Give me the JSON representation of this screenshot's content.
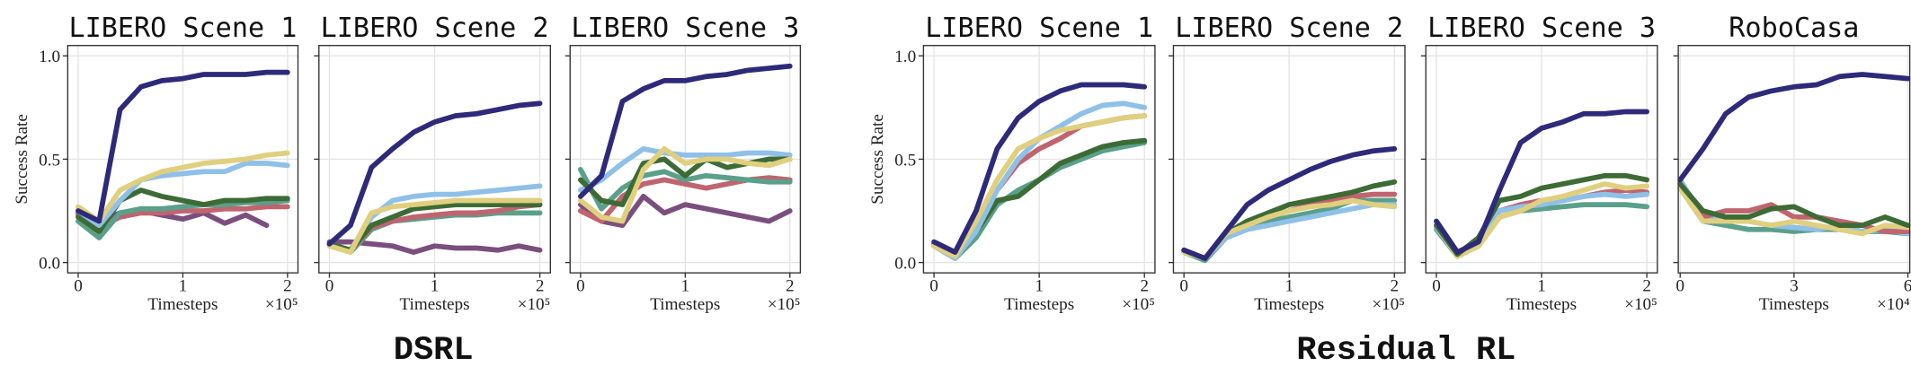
{
  "chart_data": [
    {
      "type": "line",
      "title": "LIBERO Scene 1",
      "ylabel": "Success Rate",
      "xlabel": "Timesteps",
      "x_offset": "×10⁵",
      "grid": true,
      "ytick_labels": true,
      "x": [
        0,
        0.2,
        0.4,
        0.6,
        0.8,
        1.0,
        1.2,
        1.4,
        1.6,
        1.8,
        2.0
      ],
      "xlim": [
        -0.1,
        2.1
      ],
      "xticks": [
        0,
        1,
        2
      ],
      "ylim": [
        -0.05,
        1.05
      ],
      "yticks": [
        {
          "value": 0,
          "label": "0.0"
        },
        {
          "value": 0.5,
          "label": "0.5"
        },
        {
          "value": 1,
          "label": "1.0"
        }
      ],
      "series": [
        {
          "color": "#7a4f7e",
          "values": [
            0.24,
            0.2,
            0.24,
            0.25,
            0.23,
            0.21,
            0.24,
            0.19,
            0.23,
            0.18,
            null
          ]
        },
        {
          "color": "#c0646f",
          "values": [
            0.23,
            0.17,
            0.22,
            0.24,
            0.24,
            0.25,
            0.25,
            0.26,
            0.26,
            0.27,
            0.27
          ]
        },
        {
          "color": "#5aa08a",
          "values": [
            0.2,
            0.12,
            0.24,
            0.26,
            0.26,
            0.27,
            0.28,
            0.28,
            0.29,
            0.29,
            0.3
          ]
        },
        {
          "color": "#3d6b35",
          "values": [
            0.22,
            0.15,
            0.3,
            0.35,
            0.32,
            0.3,
            0.28,
            0.3,
            0.3,
            0.31,
            0.31
          ]
        },
        {
          "color": "#8fc0e8",
          "values": [
            0.25,
            0.18,
            0.3,
            0.4,
            0.42,
            0.43,
            0.44,
            0.44,
            0.48,
            0.48,
            0.47
          ]
        },
        {
          "color": "#e0cf7e",
          "values": [
            0.27,
            0.2,
            0.35,
            0.4,
            0.44,
            0.46,
            0.48,
            0.49,
            0.5,
            0.52,
            0.53
          ]
        },
        {
          "color": "#2e2a7a",
          "values": [
            0.25,
            0.2,
            0.74,
            0.85,
            0.88,
            0.89,
            0.91,
            0.91,
            0.91,
            0.92,
            0.92
          ]
        }
      ]
    },
    {
      "type": "line",
      "title": "LIBERO Scene 2",
      "xlabel": "Timesteps",
      "x_offset": "×10⁵",
      "grid": true,
      "ytick_labels": false,
      "x": [
        0,
        0.2,
        0.4,
        0.6,
        0.8,
        1.0,
        1.2,
        1.4,
        1.6,
        1.8,
        2.0
      ],
      "xlim": [
        -0.1,
        2.1
      ],
      "xticks": [
        0,
        1,
        2
      ],
      "ylim": [
        -0.05,
        1.05
      ],
      "yticks": [
        0,
        0.5,
        1
      ],
      "series": [
        {
          "color": "#7a4f7e",
          "values": [
            0.1,
            0.1,
            0.09,
            0.08,
            0.05,
            0.08,
            0.07,
            0.07,
            0.06,
            0.08,
            0.06
          ]
        },
        {
          "color": "#5aa08a",
          "values": [
            0.09,
            0.05,
            0.16,
            0.2,
            0.21,
            0.22,
            0.23,
            0.23,
            0.24,
            0.24,
            0.24
          ]
        },
        {
          "color": "#c0646f",
          "values": [
            0.09,
            0.06,
            0.17,
            0.2,
            0.22,
            0.23,
            0.24,
            0.24,
            0.25,
            0.27,
            0.28
          ]
        },
        {
          "color": "#8fc0e8",
          "values": [
            0.08,
            0.06,
            0.22,
            0.3,
            0.32,
            0.33,
            0.33,
            0.34,
            0.35,
            0.36,
            0.37
          ]
        },
        {
          "color": "#3d6b35",
          "values": [
            0.09,
            0.06,
            0.18,
            0.22,
            0.26,
            0.27,
            0.28,
            0.28,
            0.28,
            0.28,
            0.28
          ]
        },
        {
          "color": "#e0cf7e",
          "values": [
            0.08,
            0.05,
            0.24,
            0.27,
            0.28,
            0.29,
            0.3,
            0.3,
            0.3,
            0.3,
            0.3
          ]
        },
        {
          "color": "#2e2a7a",
          "values": [
            0.09,
            0.18,
            0.46,
            0.55,
            0.63,
            0.68,
            0.71,
            0.72,
            0.74,
            0.76,
            0.77
          ]
        }
      ]
    },
    {
      "type": "line",
      "title": "LIBERO Scene 3",
      "xlabel": "Timesteps",
      "x_offset": "×10⁵",
      "grid": true,
      "ytick_labels": false,
      "x": [
        0,
        0.2,
        0.4,
        0.6,
        0.8,
        1.0,
        1.2,
        1.4,
        1.6,
        1.8,
        2.0
      ],
      "xlim": [
        -0.1,
        2.1
      ],
      "xticks": [
        0,
        1,
        2
      ],
      "ylim": [
        -0.05,
        1.05
      ],
      "yticks": [
        0,
        0.5,
        1
      ],
      "series": [
        {
          "color": "#7a4f7e",
          "values": [
            0.28,
            0.2,
            0.18,
            0.32,
            0.24,
            0.28,
            0.26,
            0.24,
            0.22,
            0.2,
            0.25
          ]
        },
        {
          "color": "#c0646f",
          "values": [
            0.25,
            0.2,
            0.32,
            0.38,
            0.4,
            0.38,
            0.36,
            0.38,
            0.4,
            0.41,
            0.4
          ]
        },
        {
          "color": "#5aa08a",
          "values": [
            0.45,
            0.26,
            0.36,
            0.42,
            0.44,
            0.4,
            0.42,
            0.41,
            0.4,
            0.39,
            0.39
          ]
        },
        {
          "color": "#8fc0e8",
          "values": [
            0.35,
            0.4,
            0.48,
            0.55,
            0.53,
            0.52,
            0.52,
            0.52,
            0.53,
            0.53,
            0.52
          ]
        },
        {
          "color": "#3d6b35",
          "values": [
            0.4,
            0.3,
            0.28,
            0.48,
            0.5,
            0.42,
            0.5,
            0.46,
            0.48,
            0.5,
            0.5
          ]
        },
        {
          "color": "#e0cf7e",
          "values": [
            0.3,
            0.22,
            0.2,
            0.45,
            0.55,
            0.48,
            0.5,
            0.5,
            0.48,
            0.47,
            0.5
          ]
        },
        {
          "color": "#2e2a7a",
          "values": [
            0.32,
            0.42,
            0.78,
            0.84,
            0.88,
            0.88,
            0.9,
            0.91,
            0.93,
            0.94,
            0.95
          ]
        }
      ]
    },
    {
      "type": "line",
      "title": "LIBERO Scene 1",
      "ylabel": "Success Rate",
      "xlabel": "Timesteps",
      "x_offset": "×10⁵",
      "grid": true,
      "ytick_labels": true,
      "x": [
        0,
        0.2,
        0.4,
        0.6,
        0.8,
        1.0,
        1.2,
        1.4,
        1.6,
        1.8,
        2.0
      ],
      "xlim": [
        -0.1,
        2.1
      ],
      "xticks": [
        0,
        1,
        2
      ],
      "ylim": [
        -0.05,
        1.05
      ],
      "yticks": [
        {
          "value": 0,
          "label": "0.0"
        },
        {
          "value": 0.5,
          "label": "0.5"
        },
        {
          "value": 1,
          "label": "1.0"
        }
      ],
      "series": [
        {
          "color": "#5aa08a",
          "values": [
            0.08,
            0.02,
            0.12,
            0.28,
            0.35,
            0.4,
            0.46,
            0.5,
            0.54,
            0.56,
            0.58
          ]
        },
        {
          "color": "#3d6b35",
          "values": [
            0.09,
            0.04,
            0.15,
            0.3,
            0.32,
            0.4,
            0.48,
            0.52,
            0.56,
            0.58,
            0.59
          ]
        },
        {
          "color": "#c0646f",
          "values": [
            0.08,
            0.03,
            0.18,
            0.35,
            0.48,
            0.55,
            0.6,
            0.66,
            0.68,
            0.7,
            0.71
          ]
        },
        {
          "color": "#8fc0e8",
          "values": [
            0.08,
            0.02,
            0.15,
            0.35,
            0.5,
            0.6,
            0.66,
            0.72,
            0.76,
            0.77,
            0.75
          ]
        },
        {
          "color": "#e0cf7e",
          "values": [
            0.08,
            0.03,
            0.2,
            0.4,
            0.55,
            0.6,
            0.64,
            0.66,
            0.68,
            0.7,
            0.71
          ]
        },
        {
          "color": "#2e2a7a",
          "values": [
            0.1,
            0.05,
            0.25,
            0.55,
            0.7,
            0.78,
            0.83,
            0.86,
            0.86,
            0.86,
            0.85
          ]
        }
      ]
    },
    {
      "type": "line",
      "title": "LIBERO Scene 2",
      "xlabel": "Timesteps",
      "x_offset": "×10⁵",
      "grid": true,
      "ytick_labels": false,
      "x": [
        0,
        0.2,
        0.4,
        0.6,
        0.8,
        1.0,
        1.2,
        1.4,
        1.6,
        1.8,
        2.0
      ],
      "xlim": [
        -0.1,
        2.1
      ],
      "xticks": [
        0,
        1,
        2
      ],
      "ylim": [
        -0.05,
        1.05
      ],
      "yticks": [
        0,
        0.5,
        1
      ],
      "series": [
        {
          "color": "#5aa08a",
          "values": [
            0.05,
            0.01,
            0.12,
            0.16,
            0.2,
            0.22,
            0.24,
            0.26,
            0.3,
            0.3,
            0.3
          ]
        },
        {
          "color": "#c0646f",
          "values": [
            0.05,
            0.02,
            0.13,
            0.18,
            0.22,
            0.25,
            0.28,
            0.3,
            0.32,
            0.33,
            0.33
          ]
        },
        {
          "color": "#8fc0e8",
          "values": [
            0.05,
            0.02,
            0.12,
            0.16,
            0.18,
            0.2,
            0.22,
            0.24,
            0.26,
            0.28,
            0.28
          ]
        },
        {
          "color": "#3d6b35",
          "values": [
            0.06,
            0.02,
            0.14,
            0.2,
            0.24,
            0.28,
            0.3,
            0.32,
            0.34,
            0.37,
            0.39
          ]
        },
        {
          "color": "#e0cf7e",
          "values": [
            0.05,
            0.02,
            0.14,
            0.18,
            0.22,
            0.25,
            0.27,
            0.28,
            0.3,
            0.28,
            0.27
          ]
        },
        {
          "color": "#2e2a7a",
          "values": [
            0.06,
            0.02,
            0.15,
            0.28,
            0.35,
            0.4,
            0.45,
            0.49,
            0.52,
            0.54,
            0.55
          ]
        }
      ]
    },
    {
      "type": "line",
      "title": "LIBERO Scene 3",
      "xlabel": "Timesteps",
      "x_offset": "×10⁵",
      "grid": true,
      "ytick_labels": false,
      "x": [
        0,
        0.2,
        0.4,
        0.6,
        0.8,
        1.0,
        1.2,
        1.4,
        1.6,
        1.8,
        2.0
      ],
      "xlim": [
        -0.1,
        2.1
      ],
      "xticks": [
        0,
        1,
        2
      ],
      "ylim": [
        -0.05,
        1.05
      ],
      "yticks": [
        0,
        0.5,
        1
      ],
      "series": [
        {
          "color": "#5aa08a",
          "values": [
            0.16,
            0.03,
            0.08,
            0.22,
            0.25,
            0.26,
            0.27,
            0.28,
            0.28,
            0.28,
            0.27
          ]
        },
        {
          "color": "#c0646f",
          "values": [
            0.17,
            0.04,
            0.1,
            0.25,
            0.28,
            0.3,
            0.3,
            0.32,
            0.34,
            0.35,
            0.34
          ]
        },
        {
          "color": "#8fc0e8",
          "values": [
            0.17,
            0.03,
            0.1,
            0.25,
            0.27,
            0.28,
            0.3,
            0.32,
            0.33,
            0.32,
            0.33
          ]
        },
        {
          "color": "#e0cf7e",
          "values": [
            0.18,
            0.03,
            0.08,
            0.22,
            0.25,
            0.3,
            0.32,
            0.35,
            0.38,
            0.36,
            0.37
          ]
        },
        {
          "color": "#3d6b35",
          "values": [
            0.18,
            0.04,
            0.12,
            0.3,
            0.32,
            0.36,
            0.38,
            0.4,
            0.42,
            0.42,
            0.4
          ]
        },
        {
          "color": "#2e2a7a",
          "values": [
            0.2,
            0.05,
            0.1,
            0.35,
            0.58,
            0.65,
            0.68,
            0.72,
            0.72,
            0.73,
            0.73
          ]
        }
      ]
    },
    {
      "type": "line",
      "title": "RoboCasa",
      "xlabel": "Timesteps",
      "x_offset": "×10⁴",
      "grid": true,
      "ytick_labels": false,
      "x": [
        0,
        0.6,
        1.2,
        1.8,
        2.4,
        3.0,
        3.6,
        4.2,
        4.8,
        5.4,
        6.0
      ],
      "xlim": [
        -0.05,
        6.05
      ],
      "xticks": [
        0,
        3,
        6
      ],
      "ylim": [
        -0.05,
        1.05
      ],
      "yticks": [
        0,
        0.5,
        1
      ],
      "series": [
        {
          "color": "#5aa08a",
          "values": [
            0.36,
            0.2,
            0.18,
            0.16,
            0.16,
            0.15,
            0.16,
            0.16,
            0.15,
            0.15,
            0.14
          ]
        },
        {
          "color": "#8fc0e8",
          "values": [
            0.4,
            0.22,
            0.2,
            0.2,
            0.18,
            0.17,
            0.16,
            0.18,
            0.15,
            0.16,
            0.14
          ]
        },
        {
          "color": "#c0646f",
          "values": [
            0.38,
            0.22,
            0.25,
            0.25,
            0.28,
            0.22,
            0.22,
            0.2,
            0.18,
            0.15,
            0.15
          ]
        },
        {
          "color": "#e0cf7e",
          "values": [
            0.36,
            0.2,
            0.2,
            0.2,
            0.18,
            0.2,
            0.18,
            0.16,
            0.14,
            0.18,
            0.17
          ]
        },
        {
          "color": "#3d6b35",
          "values": [
            0.38,
            0.25,
            0.22,
            0.22,
            0.26,
            0.27,
            0.22,
            0.18,
            0.18,
            0.22,
            0.18
          ]
        },
        {
          "color": "#2e2a7a",
          "values": [
            0.4,
            0.55,
            0.72,
            0.8,
            0.83,
            0.85,
            0.86,
            0.9,
            0.91,
            0.9,
            0.89
          ]
        }
      ]
    }
  ],
  "figure_labels": [
    "DSRL",
    "Residual RL"
  ]
}
